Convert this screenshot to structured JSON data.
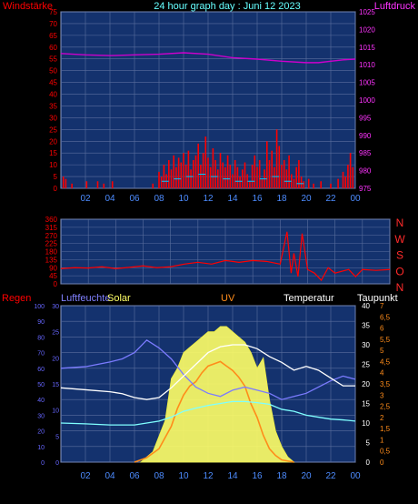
{
  "colors": {
    "background": "#000000",
    "plot_bg": "#14326e",
    "grid": "#5a6e9e",
    "wind": "#ff0000",
    "pressure": "#cc00cc",
    "direction": "#ff0000",
    "humidity": "#7b7bff",
    "solar": "#ffff66",
    "uv": "#ff8c1a",
    "temperature": "#ffffff",
    "dewpoint": "#7fffff"
  },
  "header": {
    "title": "24 hour graph day : Juni 12 2023",
    "left_label": "Windstärke",
    "right_label": "Luftdruck"
  },
  "bottom_header": {
    "regen": "Regen",
    "luftfeuchte": "Luftfeuchte",
    "solar": "Solar",
    "uv": "UV",
    "temperatur": "Temperatur",
    "taupunkt": "Taupunkt"
  },
  "chart_data": [
    {
      "type": "bar",
      "name": "wind-pressure",
      "x_ticks": [
        "02",
        "04",
        "06",
        "08",
        "10",
        "12",
        "14",
        "16",
        "18",
        "20",
        "22",
        "00"
      ],
      "y_left_ticks": [
        "75",
        "70",
        "65",
        "60",
        "55",
        "50",
        "45",
        "40",
        "35",
        "30",
        "25",
        "20",
        "15",
        "10",
        "5",
        "0"
      ],
      "y_right_ticks": [
        "1025",
        "1020",
        "1015",
        "1010",
        "1005",
        "1000",
        "995",
        "990",
        "985",
        "980",
        "975"
      ],
      "ylim_left": [
        0,
        75
      ],
      "ylim_right": [
        975,
        1025
      ],
      "wind_gusts": [
        [
          0.2,
          5
        ],
        [
          0.4,
          4
        ],
        [
          0.9,
          2
        ],
        [
          2.1,
          3
        ],
        [
          3.0,
          3
        ],
        [
          3.5,
          2
        ],
        [
          4.2,
          3
        ],
        [
          7.5,
          2
        ],
        [
          8.0,
          7
        ],
        [
          8.2,
          5
        ],
        [
          8.4,
          10
        ],
        [
          8.6,
          6
        ],
        [
          8.8,
          12
        ],
        [
          9.0,
          8
        ],
        [
          9.2,
          14
        ],
        [
          9.4,
          9
        ],
        [
          9.6,
          13
        ],
        [
          9.8,
          11
        ],
        [
          10.0,
          15
        ],
        [
          10.2,
          10
        ],
        [
          10.4,
          16
        ],
        [
          10.6,
          8
        ],
        [
          10.8,
          12
        ],
        [
          11.0,
          14
        ],
        [
          11.2,
          19
        ],
        [
          11.4,
          10
        ],
        [
          11.6,
          15
        ],
        [
          11.8,
          22
        ],
        [
          12.0,
          13
        ],
        [
          12.2,
          9
        ],
        [
          12.4,
          17
        ],
        [
          12.6,
          12
        ],
        [
          12.8,
          8
        ],
        [
          13.0,
          15
        ],
        [
          13.2,
          11
        ],
        [
          13.4,
          9
        ],
        [
          13.6,
          14
        ],
        [
          13.8,
          10
        ],
        [
          14.0,
          6
        ],
        [
          14.2,
          12
        ],
        [
          14.4,
          9
        ],
        [
          14.6,
          5
        ],
        [
          14.8,
          8
        ],
        [
          15.0,
          11
        ],
        [
          15.2,
          6
        ],
        [
          15.4,
          3
        ],
        [
          15.6,
          10
        ],
        [
          15.8,
          14
        ],
        [
          16.0,
          9
        ],
        [
          16.2,
          12
        ],
        [
          16.4,
          4
        ],
        [
          16.6,
          8
        ],
        [
          16.8,
          20
        ],
        [
          17.0,
          12
        ],
        [
          17.2,
          16
        ],
        [
          17.4,
          9
        ],
        [
          17.6,
          25
        ],
        [
          17.8,
          18
        ],
        [
          18.0,
          10
        ],
        [
          18.2,
          12
        ],
        [
          18.4,
          8
        ],
        [
          18.6,
          14
        ],
        [
          18.8,
          6
        ],
        [
          19.0,
          4
        ],
        [
          19.2,
          9
        ],
        [
          19.4,
          12
        ],
        [
          19.6,
          5
        ],
        [
          19.8,
          3
        ],
        [
          20.2,
          4
        ],
        [
          20.6,
          2
        ],
        [
          21.2,
          3
        ],
        [
          22.0,
          2
        ],
        [
          22.6,
          4
        ],
        [
          23.0,
          7
        ],
        [
          23.2,
          5
        ],
        [
          23.4,
          10
        ],
        [
          23.6,
          15
        ],
        [
          23.8,
          9
        ]
      ],
      "wind_avg": [
        [
          8.5,
          3
        ],
        [
          9.5,
          4
        ],
        [
          10.5,
          5
        ],
        [
          11.5,
          6
        ],
        [
          12.5,
          5
        ],
        [
          13.5,
          4
        ],
        [
          14.5,
          3
        ],
        [
          15.5,
          3
        ],
        [
          16.5,
          4
        ],
        [
          17.5,
          5
        ],
        [
          18.5,
          3
        ],
        [
          19.5,
          2
        ]
      ],
      "pressure": [
        [
          0,
          1013.2
        ],
        [
          2,
          1012.8
        ],
        [
          4,
          1012.6
        ],
        [
          6,
          1012.8
        ],
        [
          8,
          1013.0
        ],
        [
          10,
          1013.4
        ],
        [
          12,
          1013.0
        ],
        [
          14,
          1012.0
        ],
        [
          16,
          1011.6
        ],
        [
          18,
          1011.0
        ],
        [
          20,
          1010.6
        ],
        [
          21,
          1010.6
        ],
        [
          22,
          1011.0
        ],
        [
          23,
          1011.4
        ],
        [
          24,
          1011.6
        ]
      ]
    },
    {
      "type": "scatter",
      "name": "wind-direction",
      "x_ticks": [
        "02",
        "04",
        "06",
        "08",
        "10",
        "12",
        "14",
        "16",
        "18",
        "20",
        "22",
        "00"
      ],
      "y_left_ticks": [
        "360",
        "315",
        "270",
        "225",
        "180",
        "135",
        "90",
        "45",
        "0"
      ],
      "y_right_ticks": [
        "N",
        "W",
        "S",
        "O",
        "N"
      ],
      "ylim": [
        0,
        360
      ],
      "direction": [
        [
          0,
          85
        ],
        [
          1,
          90
        ],
        [
          2,
          88
        ],
        [
          3,
          95
        ],
        [
          4,
          85
        ],
        [
          5,
          92
        ],
        [
          6,
          100
        ],
        [
          7,
          90
        ],
        [
          8,
          95
        ],
        [
          9,
          110
        ],
        [
          10,
          120
        ],
        [
          11,
          110
        ],
        [
          12,
          130
        ],
        [
          13,
          120
        ],
        [
          14,
          130
        ],
        [
          15,
          125
        ],
        [
          16,
          110
        ],
        [
          16.5,
          290
        ],
        [
          16.8,
          60
        ],
        [
          17,
          170
        ],
        [
          17.3,
          40
        ],
        [
          17.6,
          280
        ],
        [
          18,
          80
        ],
        [
          18.5,
          60
        ],
        [
          19,
          20
        ],
        [
          19.5,
          90
        ],
        [
          20,
          60
        ],
        [
          21,
          80
        ],
        [
          21.5,
          40
        ],
        [
          22,
          80
        ],
        [
          23,
          75
        ],
        [
          24,
          80
        ]
      ]
    },
    {
      "type": "line",
      "name": "climate",
      "x_ticks": [
        "02",
        "04",
        "06",
        "08",
        "10",
        "12",
        "14",
        "16",
        "18",
        "20",
        "22",
        "00"
      ],
      "y_regen_ticks": [
        "100",
        "90",
        "80",
        "70",
        "60",
        "50",
        "40",
        "30",
        "20",
        "10",
        "0"
      ],
      "y_hum_ticks": [
        "30",
        "25",
        "20",
        "15",
        "10",
        "5",
        "0"
      ],
      "y_temp_ticks": [
        "40",
        "35",
        "30",
        "25",
        "20",
        "15",
        "10",
        "5",
        "0"
      ],
      "y_uv_ticks": [
        "7",
        "6,5",
        "6",
        "5,5",
        "5",
        "4,5",
        "4",
        "3,5",
        "3",
        "2,5",
        "2",
        "1,5",
        "1",
        "0,5",
        "0"
      ],
      "ylim_regen": [
        0,
        100
      ],
      "ylim_temp": [
        0,
        40
      ],
      "ylim_uv": [
        0,
        7
      ],
      "humidity": [
        [
          0,
          60
        ],
        [
          2,
          61
        ],
        [
          4,
          64
        ],
        [
          5,
          66
        ],
        [
          6,
          70
        ],
        [
          7,
          78
        ],
        [
          8,
          73
        ],
        [
          9,
          66
        ],
        [
          10,
          56
        ],
        [
          11,
          48
        ],
        [
          12,
          44
        ],
        [
          13,
          42
        ],
        [
          14,
          46
        ],
        [
          15,
          48
        ],
        [
          16,
          46
        ],
        [
          17,
          44
        ],
        [
          18,
          40
        ],
        [
          19,
          42
        ],
        [
          20,
          44
        ],
        [
          21,
          48
        ],
        [
          22,
          52
        ],
        [
          23,
          55
        ],
        [
          24,
          53
        ]
      ],
      "temperature": [
        [
          0,
          19
        ],
        [
          2,
          18.5
        ],
        [
          4,
          18
        ],
        [
          5,
          17.5
        ],
        [
          6,
          16.5
        ],
        [
          7,
          16
        ],
        [
          8,
          16.5
        ],
        [
          9,
          19
        ],
        [
          10,
          22
        ],
        [
          11,
          25
        ],
        [
          12,
          28
        ],
        [
          13,
          29.5
        ],
        [
          14,
          30
        ],
        [
          15,
          30
        ],
        [
          16,
          29
        ],
        [
          17,
          27
        ],
        [
          18,
          25.5
        ],
        [
          19,
          23.5
        ],
        [
          20,
          24.5
        ],
        [
          21,
          23.5
        ],
        [
          22,
          21.5
        ],
        [
          23,
          19.5
        ],
        [
          24,
          19.5
        ]
      ],
      "dewpoint": [
        [
          0,
          10
        ],
        [
          2,
          9.8
        ],
        [
          4,
          9.5
        ],
        [
          6,
          9.5
        ],
        [
          8,
          10.5
        ],
        [
          9,
          11.5
        ],
        [
          10,
          13
        ],
        [
          11,
          13.8
        ],
        [
          12,
          14.5
        ],
        [
          13,
          15
        ],
        [
          14,
          15.5
        ],
        [
          15,
          15.5
        ],
        [
          16,
          15.2
        ],
        [
          17,
          14.8
        ],
        [
          18,
          13.5
        ],
        [
          19,
          13
        ],
        [
          20,
          12
        ],
        [
          21,
          11.5
        ],
        [
          22,
          11
        ],
        [
          23,
          10.8
        ],
        [
          24,
          10.5
        ]
      ],
      "solar": [
        [
          6.5,
          0
        ],
        [
          7.5,
          2
        ],
        [
          8.5,
          8
        ],
        [
          9,
          16
        ],
        [
          9.5,
          18
        ],
        [
          10,
          21
        ],
        [
          10.5,
          22
        ],
        [
          11,
          23
        ],
        [
          11.5,
          24
        ],
        [
          12,
          25
        ],
        [
          12.5,
          25
        ],
        [
          13,
          26
        ],
        [
          13.5,
          26
        ],
        [
          14,
          25
        ],
        [
          14.5,
          24
        ],
        [
          15,
          23
        ],
        [
          15.5,
          21
        ],
        [
          16,
          18
        ],
        [
          16.5,
          20
        ],
        [
          17,
          12
        ],
        [
          17.5,
          6
        ],
        [
          18,
          3
        ],
        [
          18.5,
          1
        ],
        [
          19,
          0
        ]
      ],
      "uv": [
        [
          6,
          0
        ],
        [
          7,
          0.2
        ],
        [
          8,
          0.6
        ],
        [
          9,
          1.6
        ],
        [
          9.5,
          2.4
        ],
        [
          10,
          3.0
        ],
        [
          10.5,
          3.4
        ],
        [
          11,
          3.6
        ],
        [
          11.5,
          4.0
        ],
        [
          12,
          4.3
        ],
        [
          12.5,
          4.4
        ],
        [
          13,
          4.5
        ],
        [
          13.5,
          4.3
        ],
        [
          14,
          4.1
        ],
        [
          14.5,
          3.8
        ],
        [
          15,
          3.4
        ],
        [
          15.5,
          2.6
        ],
        [
          16,
          2.0
        ],
        [
          16.5,
          1.2
        ],
        [
          17,
          0.6
        ],
        [
          17.5,
          0.3
        ],
        [
          18,
          0.1
        ],
        [
          19,
          0
        ]
      ]
    }
  ]
}
